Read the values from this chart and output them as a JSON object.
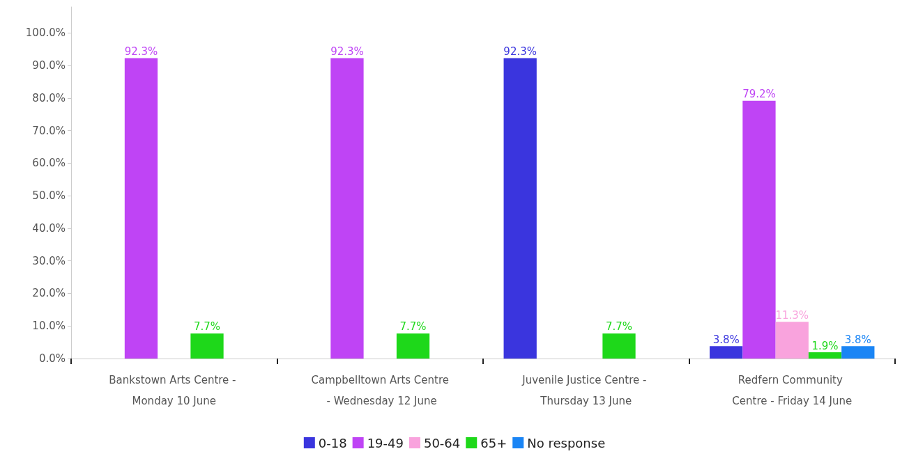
{
  "chart_data": {
    "type": "bar",
    "categories": [
      "Bankstown Arts Centre - Monday 10 June",
      "Campbelltown Arts Centre - Wednesday 12 June",
      "Juvenile Justice Centre - Thursday 13 June",
      "Redfern Community Centre - Friday 14 June"
    ],
    "series": [
      {
        "name": "0-18",
        "color": "#3a35de",
        "values": [
          null,
          null,
          92.3,
          3.8
        ],
        "value_labels": [
          null,
          null,
          "92.3%",
          "3.8%"
        ]
      },
      {
        "name": "19-49",
        "color": "#bf44f5",
        "values": [
          92.3,
          92.3,
          null,
          79.2
        ],
        "value_labels": [
          "92.3%",
          "92.3%",
          null,
          "79.2%"
        ]
      },
      {
        "name": "50-64",
        "color": "#f9a3dd",
        "values": [
          null,
          null,
          null,
          11.3
        ],
        "value_labels": [
          null,
          null,
          null,
          "11.3%"
        ]
      },
      {
        "name": "65+",
        "color": "#1ed81a",
        "values": [
          7.7,
          7.7,
          7.7,
          1.9
        ],
        "value_labels": [
          "7.7%",
          "7.7%",
          "7.7%",
          "1.9%"
        ]
      },
      {
        "name": "No response",
        "color": "#1a85f5",
        "values": [
          null,
          null,
          null,
          3.8
        ],
        "value_labels": [
          null,
          null,
          null,
          "3.8%"
        ]
      }
    ],
    "ylim": [
      0,
      108
    ],
    "yticks": [
      {
        "value": 0,
        "label": "0.0%"
      },
      {
        "value": 10,
        "label": "10.0%"
      },
      {
        "value": 20,
        "label": "20.0%"
      },
      {
        "value": 30,
        "label": "30.0%"
      },
      {
        "value": 40,
        "label": "40.0%"
      },
      {
        "value": 50,
        "label": "50.0%"
      },
      {
        "value": 60,
        "label": "60.0%"
      },
      {
        "value": 70,
        "label": "70.0%"
      },
      {
        "value": 80,
        "label": "80.0%"
      },
      {
        "value": 90,
        "label": "90.0%"
      },
      {
        "value": 100,
        "label": "100.0%"
      }
    ],
    "grid": false,
    "legend": "bottom"
  }
}
